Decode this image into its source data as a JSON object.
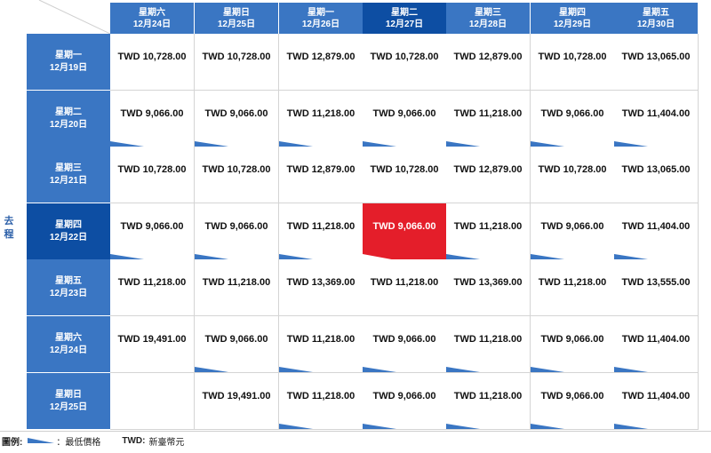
{
  "axis": {
    "outbound_label": "去程"
  },
  "return_dates": [
    {
      "weekday": "星期六",
      "date": "12月24日"
    },
    {
      "weekday": "星期日",
      "date": "12月25日"
    },
    {
      "weekday": "星期一",
      "date": "12月26日"
    },
    {
      "weekday": "星期二",
      "date": "12月27日",
      "selected": true
    },
    {
      "weekday": "星期三",
      "date": "12月28日"
    },
    {
      "weekday": "星期四",
      "date": "12月29日"
    },
    {
      "weekday": "星期五",
      "date": "12月30日"
    }
  ],
  "depart_dates": [
    {
      "weekday": "星期一",
      "date": "12月19日"
    },
    {
      "weekday": "星期二",
      "date": "12月20日"
    },
    {
      "weekday": "星期三",
      "date": "12月21日"
    },
    {
      "weekday": "星期四",
      "date": "12月22日",
      "selected": true
    },
    {
      "weekday": "星期五",
      "date": "12月23日"
    },
    {
      "weekday": "星期六",
      "date": "12月24日"
    },
    {
      "weekday": "星期日",
      "date": "12月25日"
    }
  ],
  "prices": [
    [
      "TWD 10,728.00",
      "TWD 10,728.00",
      "TWD 12,879.00",
      "TWD 10,728.00",
      "TWD 12,879.00",
      "TWD 10,728.00",
      "TWD 13,065.00"
    ],
    [
      "TWD 9,066.00",
      "TWD 9,066.00",
      "TWD 11,218.00",
      "TWD 9,066.00",
      "TWD 11,218.00",
      "TWD 9,066.00",
      "TWD 11,404.00"
    ],
    [
      "TWD 10,728.00",
      "TWD 10,728.00",
      "TWD 12,879.00",
      "TWD 10,728.00",
      "TWD 12,879.00",
      "TWD 10,728.00",
      "TWD 13,065.00"
    ],
    [
      "TWD 9,066.00",
      "TWD 9,066.00",
      "TWD 11,218.00",
      "TWD 9,066.00",
      "TWD 11,218.00",
      "TWD 9,066.00",
      "TWD 11,404.00"
    ],
    [
      "TWD 11,218.00",
      "TWD 11,218.00",
      "TWD 13,369.00",
      "TWD 11,218.00",
      "TWD 13,369.00",
      "TWD 11,218.00",
      "TWD 13,555.00"
    ],
    [
      "TWD 19,491.00",
      "TWD 9,066.00",
      "TWD 11,218.00",
      "TWD 9,066.00",
      "TWD 11,218.00",
      "TWD 9,066.00",
      "TWD 11,404.00"
    ],
    [
      "",
      "TWD 19,491.00",
      "TWD 11,218.00",
      "TWD 9,066.00",
      "TWD 11,218.00",
      "TWD 9,066.00",
      "TWD 11,404.00"
    ]
  ],
  "lowest_price_marks": [
    [
      false,
      false,
      false,
      false,
      false,
      false,
      false
    ],
    [
      true,
      true,
      true,
      true,
      true,
      true,
      true
    ],
    [
      false,
      false,
      false,
      false,
      false,
      false,
      false
    ],
    [
      true,
      true,
      true,
      true,
      true,
      true,
      true
    ],
    [
      false,
      false,
      false,
      false,
      false,
      false,
      false
    ],
    [
      false,
      true,
      true,
      true,
      true,
      true,
      true
    ],
    [
      false,
      false,
      true,
      true,
      true,
      true,
      true
    ]
  ],
  "selected_cell": {
    "row": 3,
    "col": 3,
    "price": "TWD 9,066.00"
  },
  "legend": {
    "label": "圖例:",
    "lowest_text": "：最低價格",
    "twd_key": "TWD:",
    "twd_value": "新臺幣元"
  },
  "colors": {
    "header_blue": "#3a76c3",
    "header_selected": "#0d4ea3",
    "selected_cell": "#e41e2a",
    "lowest_mark": "#3a76c3"
  }
}
